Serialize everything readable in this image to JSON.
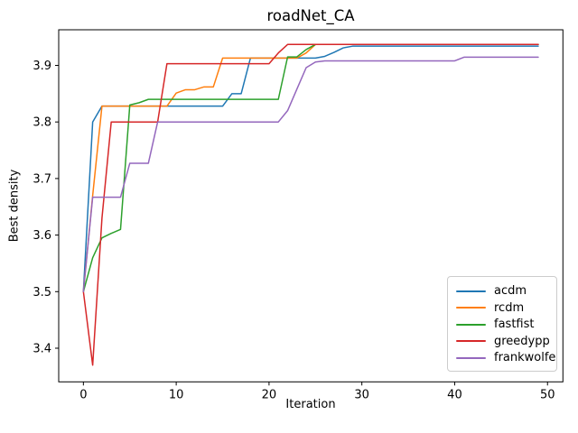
{
  "chart_data": {
    "type": "line",
    "title": "roadNet_CA",
    "xlabel": "Iteration",
    "ylabel": "Best density",
    "xlim": [
      -2.66,
      51.66
    ],
    "ylim": [
      3.3405,
      3.963
    ],
    "xticks": [
      0,
      10,
      20,
      30,
      40,
      50
    ],
    "yticks": [
      3.4,
      3.5,
      3.6,
      3.7,
      3.8,
      3.9
    ],
    "grid": false,
    "legend_position": "lower right",
    "x": [
      0,
      1,
      2,
      3,
      4,
      5,
      6,
      7,
      8,
      9,
      10,
      11,
      12,
      13,
      14,
      15,
      16,
      17,
      18,
      19,
      20,
      21,
      22,
      23,
      24,
      25,
      26,
      27,
      28,
      29,
      30,
      31,
      32,
      33,
      34,
      35,
      36,
      37,
      38,
      39,
      40,
      41,
      42,
      43,
      44,
      45,
      46,
      47,
      48,
      49
    ],
    "series": [
      {
        "name": "acdm",
        "color": "#1f77b4",
        "values": [
          3.5,
          3.8,
          3.828,
          3.828,
          3.828,
          3.828,
          3.828,
          3.828,
          3.828,
          3.828,
          3.828,
          3.828,
          3.828,
          3.828,
          3.828,
          3.828,
          3.85,
          3.85,
          3.913,
          3.913,
          3.913,
          3.913,
          3.913,
          3.913,
          3.913,
          3.913,
          3.916,
          3.923,
          3.931,
          3.934,
          3.934,
          3.934,
          3.934,
          3.934,
          3.934,
          3.934,
          3.934,
          3.934,
          3.934,
          3.934,
          3.934,
          3.934,
          3.934,
          3.934,
          3.934,
          3.934,
          3.934,
          3.934,
          3.934,
          3.934
        ]
      },
      {
        "name": "rcdm",
        "color": "#ff7f0e",
        "values": [
          3.5,
          3.67,
          3.828,
          3.828,
          3.828,
          3.828,
          3.828,
          3.828,
          3.828,
          3.828,
          3.851,
          3.857,
          3.857,
          3.862,
          3.862,
          3.913,
          3.913,
          3.913,
          3.913,
          3.913,
          3.913,
          3.913,
          3.913,
          3.913,
          3.922,
          3.937,
          3.937,
          3.937,
          3.937,
          3.937,
          3.937,
          3.937,
          3.937,
          3.937,
          3.937,
          3.937,
          3.937,
          3.937,
          3.937,
          3.937,
          3.937,
          3.937,
          3.937,
          3.937,
          3.937,
          3.937,
          3.937,
          3.937,
          3.937,
          3.937
        ]
      },
      {
        "name": "fastfist",
        "color": "#2ca02c",
        "values": [
          3.5,
          3.56,
          3.595,
          3.603,
          3.61,
          3.83,
          3.834,
          3.84,
          3.84,
          3.84,
          3.84,
          3.84,
          3.84,
          3.84,
          3.84,
          3.84,
          3.84,
          3.84,
          3.84,
          3.84,
          3.84,
          3.84,
          3.915,
          3.915,
          3.928,
          3.937,
          3.937,
          3.937,
          3.937,
          3.937,
          3.937,
          3.937,
          3.937,
          3.937,
          3.937,
          3.937,
          3.937,
          3.937,
          3.937,
          3.937,
          3.937,
          3.937,
          3.937,
          3.937,
          3.937,
          3.937,
          3.937,
          3.937,
          3.937,
          3.937
        ]
      },
      {
        "name": "greedypp",
        "color": "#d62728",
        "values": [
          3.5,
          3.37,
          3.63,
          3.8,
          3.8,
          3.8,
          3.8,
          3.8,
          3.8,
          3.903,
          3.903,
          3.903,
          3.903,
          3.903,
          3.903,
          3.903,
          3.903,
          3.903,
          3.903,
          3.903,
          3.903,
          3.922,
          3.937,
          3.937,
          3.937,
          3.937,
          3.937,
          3.937,
          3.937,
          3.937,
          3.937,
          3.937,
          3.937,
          3.937,
          3.937,
          3.937,
          3.937,
          3.937,
          3.937,
          3.937,
          3.937,
          3.937,
          3.937,
          3.937,
          3.937,
          3.937,
          3.937,
          3.937,
          3.937,
          3.937
        ]
      },
      {
        "name": "frankwolfe",
        "color": "#9467bd",
        "values": [
          3.5,
          3.667,
          3.667,
          3.667,
          3.667,
          3.727,
          3.727,
          3.727,
          3.8,
          3.8,
          3.8,
          3.8,
          3.8,
          3.8,
          3.8,
          3.8,
          3.8,
          3.8,
          3.8,
          3.8,
          3.8,
          3.8,
          3.82,
          3.858,
          3.896,
          3.906,
          3.908,
          3.908,
          3.908,
          3.908,
          3.908,
          3.908,
          3.908,
          3.908,
          3.908,
          3.908,
          3.908,
          3.908,
          3.908,
          3.908,
          3.908,
          3.9145,
          3.9145,
          3.9145,
          3.9145,
          3.9145,
          3.9145,
          3.9145,
          3.9145,
          3.9145
        ]
      }
    ],
    "colors": {
      "background": "#ffffff",
      "text": "#000000",
      "spine": "#000000",
      "legend_border": "#cccccc"
    }
  }
}
